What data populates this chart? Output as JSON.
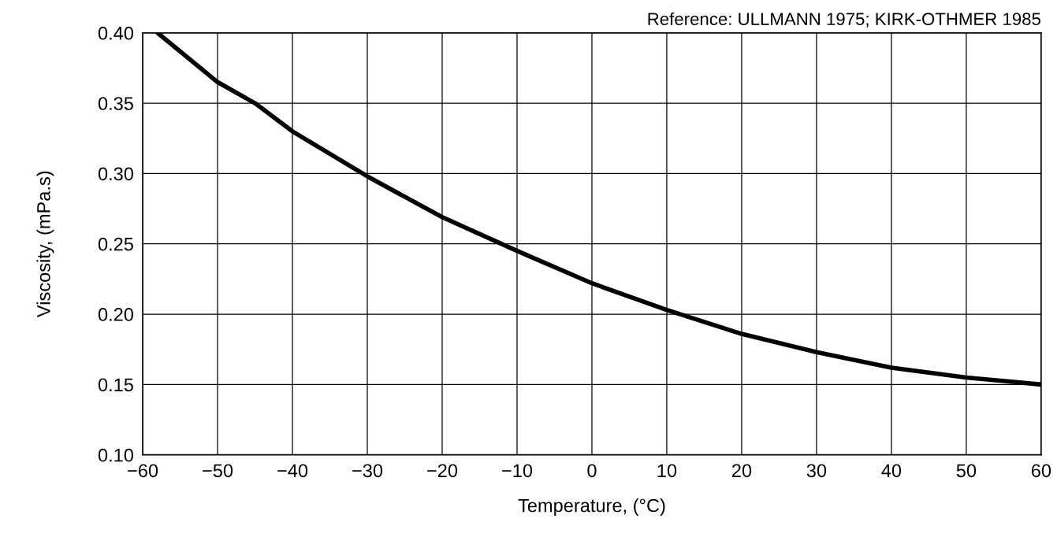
{
  "chart_data": {
    "type": "line",
    "xlabel": "Temperature, (°C)",
    "ylabel": "Viscosity, (mPa.s)",
    "annotations": [
      "Reference: ULLMANN 1975; KIRK-OTHMER 1985"
    ],
    "series": [
      {
        "color": "#000000",
        "x": [
          -58,
          -50,
          -45,
          -40,
          -30,
          -20,
          -10,
          0,
          10,
          20,
          30,
          40,
          50,
          60
        ],
        "values": [
          0.4,
          0.365,
          0.35,
          0.33,
          0.298,
          0.269,
          0.245,
          0.222,
          0.203,
          0.186,
          0.173,
          0.162,
          0.155,
          0.15
        ]
      }
    ],
    "xlim": [
      -60,
      60
    ],
    "xticks": [
      {
        "value": -60,
        "label": "−60"
      },
      {
        "value": -50,
        "label": "−50"
      },
      {
        "value": -40,
        "label": "−40"
      },
      {
        "value": -30,
        "label": "−30"
      },
      {
        "value": -20,
        "label": "−20"
      },
      {
        "value": -10,
        "label": "−10"
      },
      0,
      10,
      20,
      30,
      40,
      50,
      60
    ],
    "ylim": [
      0.1,
      0.4
    ],
    "yticks": [
      {
        "value": 0.1,
        "label": "0.10"
      },
      {
        "value": 0.15,
        "label": "0.15"
      },
      {
        "value": 0.2,
        "label": "0.20"
      },
      {
        "value": 0.25,
        "label": "0.25"
      },
      {
        "value": 0.3,
        "label": "0.30"
      },
      {
        "value": 0.35,
        "label": "0.35"
      },
      {
        "value": 0.4,
        "label": "0.40"
      }
    ],
    "grid": true,
    "marker": "none",
    "line_style": "solid",
    "legend": false
  }
}
